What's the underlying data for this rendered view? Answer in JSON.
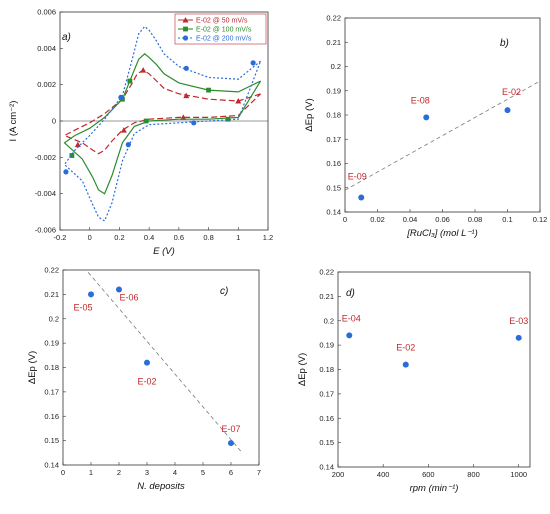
{
  "colors": {
    "red": "#c0282d",
    "green": "#2e8b2e",
    "blue": "#2a6dd9",
    "fit": "#7a7a7a"
  },
  "chart_data": [
    {
      "id": "a",
      "type": "line",
      "panel_label": "a)",
      "xlabel": "E (V)",
      "ylabel": "I (A cm⁻²)",
      "xlim": [
        -0.2,
        1.2
      ],
      "ylim": [
        -0.006,
        0.006
      ],
      "xticks": [
        "-0.2",
        "0",
        "0.2",
        "0.4",
        "0.6",
        "0.8",
        "1",
        "1.2"
      ],
      "yticks": [
        "0.006",
        "0.004",
        "0.002",
        "0",
        "-0.002",
        "-0.004",
        "-0.006"
      ],
      "legend_position": "top-right",
      "series": [
        {
          "name": "E-02 @  50 mV/s",
          "color": "#c0282d",
          "dash": "6,3",
          "marker": "triangle",
          "cathodic": [
            [
              1.15,
              0.0015
            ],
            [
              1.0,
              0.0011
            ],
            [
              0.8,
              0.0012
            ],
            [
              0.6,
              0.0015
            ],
            [
              0.5,
              0.0018
            ],
            [
              0.45,
              0.0022
            ],
            [
              0.4,
              0.0026
            ],
            [
              0.36,
              0.0028
            ],
            [
              0.32,
              0.0026
            ],
            [
              0.28,
              0.002
            ],
            [
              0.22,
              0.0012
            ],
            [
              0.1,
              0.0004
            ],
            [
              0.0,
              -0.0001
            ],
            [
              -0.1,
              -0.0005
            ],
            [
              -0.17,
              -0.0008
            ]
          ],
          "anodic": [
            [
              -0.17,
              -0.0008
            ],
            [
              -0.05,
              -0.0012
            ],
            [
              0.02,
              -0.0016
            ],
            [
              0.06,
              -0.0018
            ],
            [
              0.1,
              -0.0016
            ],
            [
              0.15,
              -0.0011
            ],
            [
              0.22,
              -0.0005
            ],
            [
              0.3,
              -0.0001
            ],
            [
              0.4,
              0.0001
            ],
            [
              0.6,
              0.0002
            ],
            [
              0.8,
              0.0002
            ],
            [
              1.0,
              0.0003
            ],
            [
              1.15,
              0.0015
            ]
          ],
          "markers": [
            [
              1.0,
              0.0011
            ],
            [
              0.65,
              0.0014
            ],
            [
              0.36,
              0.0028
            ],
            [
              0.63,
              0.0002
            ],
            [
              0.23,
              -0.0005
            ],
            [
              -0.08,
              -0.0013
            ]
          ]
        },
        {
          "name": "E-02 @ 100 mV/s",
          "color": "#2e8b2e",
          "dash": "",
          "marker": "square",
          "cathodic": [
            [
              1.15,
              0.0022
            ],
            [
              1.0,
              0.0016
            ],
            [
              0.8,
              0.0017
            ],
            [
              0.6,
              0.0021
            ],
            [
              0.5,
              0.0026
            ],
            [
              0.45,
              0.0031
            ],
            [
              0.4,
              0.0035
            ],
            [
              0.37,
              0.0037
            ],
            [
              0.33,
              0.0034
            ],
            [
              0.28,
              0.0024
            ],
            [
              0.22,
              0.0012
            ],
            [
              0.1,
              0.0002
            ],
            [
              0.0,
              -0.0004
            ],
            [
              -0.1,
              -0.0008
            ],
            [
              -0.17,
              -0.0012
            ]
          ],
          "anodic": [
            [
              -0.17,
              -0.0012
            ],
            [
              -0.05,
              -0.0021
            ],
            [
              0.02,
              -0.0031
            ],
            [
              0.06,
              -0.0038
            ],
            [
              0.1,
              -0.004
            ],
            [
              0.15,
              -0.003
            ],
            [
              0.22,
              -0.0012
            ],
            [
              0.3,
              -0.0003
            ],
            [
              0.4,
              0.0
            ],
            [
              0.6,
              0.0001
            ],
            [
              0.8,
              0.0001
            ],
            [
              1.0,
              0.0002
            ],
            [
              1.15,
              0.0022
            ]
          ],
          "markers": [
            [
              0.8,
              0.0017
            ],
            [
              0.27,
              0.0022
            ],
            [
              0.22,
              0.0012
            ],
            [
              0.93,
              0.0001
            ],
            [
              0.38,
              0.0
            ],
            [
              -0.12,
              -0.0019
            ]
          ]
        },
        {
          "name": "E-02 @ 200 mV/s",
          "color": "#2a6dd9",
          "dash": "2,2",
          "marker": "circle",
          "cathodic": [
            [
              1.15,
              0.0033
            ],
            [
              1.0,
              0.0023
            ],
            [
              0.8,
              0.0024
            ],
            [
              0.6,
              0.003
            ],
            [
              0.5,
              0.0037
            ],
            [
              0.45,
              0.0044
            ],
            [
              0.4,
              0.005
            ],
            [
              0.37,
              0.0052
            ],
            [
              0.33,
              0.0048
            ],
            [
              0.28,
              0.0032
            ],
            [
              0.22,
              0.0014
            ],
            [
              0.1,
              0.0001
            ],
            [
              0.0,
              -0.0008
            ],
            [
              -0.1,
              -0.0016
            ],
            [
              -0.17,
              -0.0024
            ]
          ],
          "anodic": [
            [
              -0.17,
              -0.0024
            ],
            [
              -0.05,
              -0.0033
            ],
            [
              0.02,
              -0.0046
            ],
            [
              0.06,
              -0.0053
            ],
            [
              0.1,
              -0.0055
            ],
            [
              0.15,
              -0.0045
            ],
            [
              0.22,
              -0.0022
            ],
            [
              0.3,
              -0.0007
            ],
            [
              0.4,
              -0.0002
            ],
            [
              0.6,
              -0.0001
            ],
            [
              0.8,
              0.0
            ],
            [
              1.0,
              0.0001
            ],
            [
              1.15,
              0.0033
            ]
          ],
          "markers": [
            [
              1.1,
              0.0032
            ],
            [
              0.65,
              0.0029
            ],
            [
              0.21,
              0.0013
            ],
            [
              0.26,
              -0.0013
            ],
            [
              0.7,
              -0.0001
            ],
            [
              -0.16,
              -0.0028
            ]
          ]
        }
      ]
    },
    {
      "id": "b",
      "type": "scatter",
      "panel_label": "b)",
      "xlabel": "[RuCl₃] (mol L⁻¹)",
      "ylabel": "ΔEp (V)",
      "xlim": [
        0,
        0.12
      ],
      "ylim": [
        0.14,
        0.22
      ],
      "xticks": [
        "0",
        "0.02",
        "0.04",
        "0.06",
        "0.08",
        "0.1",
        "0.12"
      ],
      "yticks": [
        "0.22",
        "0.21",
        "0.2",
        "0.19",
        "0.18",
        "0.17",
        "0.16",
        "0.15",
        "0.14"
      ],
      "points": [
        {
          "label": "E-09",
          "x": 0.01,
          "y": 0.146
        },
        {
          "label": "E-08",
          "x": 0.05,
          "y": 0.179
        },
        {
          "label": "E-02",
          "x": 0.1,
          "y": 0.182
        }
      ],
      "fit_line": [
        [
          0.0,
          0.149
        ],
        [
          0.12,
          0.194
        ]
      ]
    },
    {
      "id": "c",
      "type": "scatter",
      "panel_label": "c)",
      "xlabel": "N. deposits",
      "ylabel": "ΔEp (V)",
      "xlim": [
        0,
        7
      ],
      "ylim": [
        0.14,
        0.22
      ],
      "xticks": [
        "0",
        "1",
        "2",
        "3",
        "4",
        "5",
        "6",
        "7"
      ],
      "yticks": [
        "0.22",
        "0.21",
        "0.2",
        "0.19",
        "0.18",
        "0.17",
        "0.16",
        "0.15",
        "0.14"
      ],
      "points": [
        {
          "label": "E-05",
          "x": 1,
          "y": 0.21
        },
        {
          "label": "E-06",
          "x": 2,
          "y": 0.212
        },
        {
          "label": "E-02",
          "x": 3,
          "y": 0.182
        },
        {
          "label": "E-07",
          "x": 6,
          "y": 0.149
        }
      ],
      "fit_line": [
        [
          0.9,
          0.219
        ],
        [
          6.4,
          0.145
        ]
      ]
    },
    {
      "id": "d",
      "type": "scatter",
      "panel_label": "d)",
      "xlabel": "rpm (min⁻¹)",
      "ylabel": "ΔEp (V)",
      "xlim": [
        200,
        1050
      ],
      "ylim": [
        0.14,
        0.22
      ],
      "xticks": [
        "200",
        "400",
        "600",
        "800",
        "1000"
      ],
      "yticks": [
        "0.22",
        "0.21",
        "0.2",
        "0.19",
        "0.18",
        "0.17",
        "0.16",
        "0.15",
        "0.14"
      ],
      "points": [
        {
          "label": "E-04",
          "x": 250,
          "y": 0.194
        },
        {
          "label": "E-02",
          "x": 500,
          "y": 0.182
        },
        {
          "label": "E-03",
          "x": 1000,
          "y": 0.193
        }
      ]
    }
  ]
}
